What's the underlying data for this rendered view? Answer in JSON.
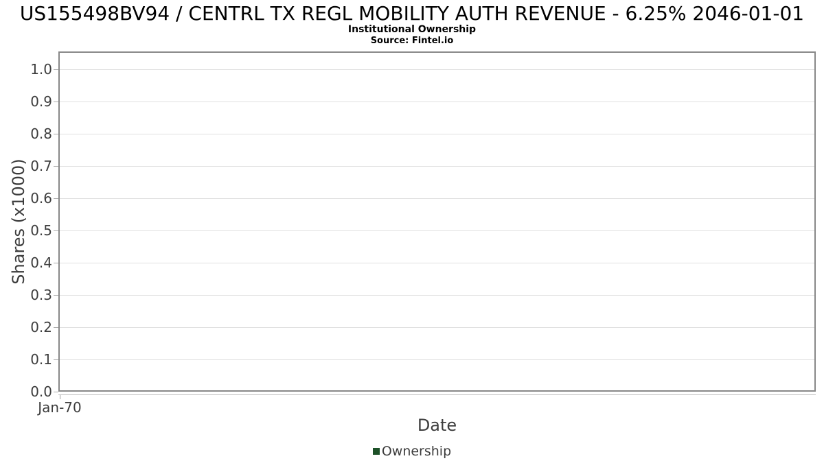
{
  "header": {
    "title": "US155498BV94 / CENTRL TX REGL MOBILITY AUTH REVENUE - 6.25% 2046-01-01",
    "subtitle": "Institutional Ownership",
    "source": "Source: Fintel.io"
  },
  "colors": {
    "series_green": "#1d5128",
    "gridline": "#e0e0e0",
    "plot_border": "#888888",
    "axis_text": "#3d3d3d",
    "title_text": "#000000"
  },
  "chart_data": {
    "type": "line",
    "title": "US155498BV94 / CENTRL TX REGL MOBILITY AUTH REVENUE - 6.25% 2046-01-01",
    "subtitle": "Institutional Ownership",
    "source": "Source: Fintel.io",
    "xlabel": "Date",
    "ylabel": "Shares (x1000)",
    "x_tick_labels": [
      "Jan-70"
    ],
    "y_tick_labels": [
      "0.0",
      "0.1",
      "0.2",
      "0.3",
      "0.4",
      "0.5",
      "0.6",
      "0.7",
      "0.8",
      "0.9",
      "1.0"
    ],
    "ylim": [
      0.0,
      1.055
    ],
    "grid": true,
    "legend_position": "bottom",
    "legend": [
      {
        "label": "Ownership",
        "color": "#1d5128"
      }
    ],
    "series": [
      {
        "name": "Ownership",
        "x": [],
        "values": []
      }
    ]
  }
}
